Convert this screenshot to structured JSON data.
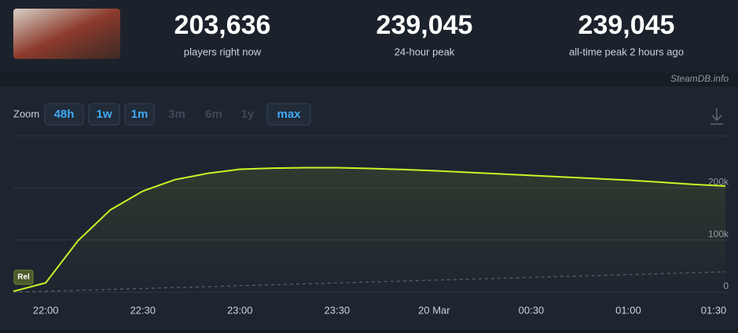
{
  "header": {
    "stats": [
      {
        "value": "203,636",
        "label": "players right now"
      },
      {
        "value": "239,045",
        "label": "24-hour peak"
      },
      {
        "value": "239,045",
        "label": "all-time peak 2 hours ago"
      }
    ]
  },
  "watermark": "SteamDB.info",
  "zoom": {
    "label": "Zoom",
    "buttons": [
      {
        "text": "48h",
        "enabled": true
      },
      {
        "text": "1w",
        "enabled": true
      },
      {
        "text": "1m",
        "enabled": true
      },
      {
        "text": "3m",
        "enabled": false
      },
      {
        "text": "6m",
        "enabled": false
      },
      {
        "text": "1y",
        "enabled": false
      },
      {
        "text": "max",
        "enabled": true
      }
    ]
  },
  "chart_data": {
    "type": "line",
    "annotations": [
      "Rel"
    ],
    "categories": [
      null,
      "22:00",
      null,
      null,
      "22:30",
      null,
      null,
      "23:00",
      null,
      null,
      "23:30",
      null,
      null,
      "20 Mar",
      null,
      null,
      "00:30",
      null,
      null,
      "01:00",
      null,
      null,
      "01:30"
    ],
    "series": [
      {
        "color": "#c8f526",
        "values": [
          1500,
          18000,
          99000,
          158000,
          194000,
          216000,
          228000,
          236000,
          238000,
          239000,
          239000,
          237500,
          235500,
          233000,
          230000,
          227000,
          224000,
          221000,
          218000,
          215000,
          211000,
          207000,
          203636
        ]
      },
      {
        "color": "#5a6270",
        "dashed": true,
        "values": [
          0,
          1800,
          3500,
          5300,
          7100,
          8900,
          10600,
          12400,
          14200,
          16000,
          17700,
          19500,
          21300,
          23000,
          24800,
          26600,
          28400,
          30100,
          31900,
          33700,
          35500,
          37200,
          39000
        ]
      }
    ],
    "ylim": [
      0,
      300000
    ],
    "yticks": [
      0,
      {
        "value": 100000,
        "label": "100k"
      },
      {
        "value": 200000,
        "label": "200k"
      }
    ],
    "grid": true
  }
}
